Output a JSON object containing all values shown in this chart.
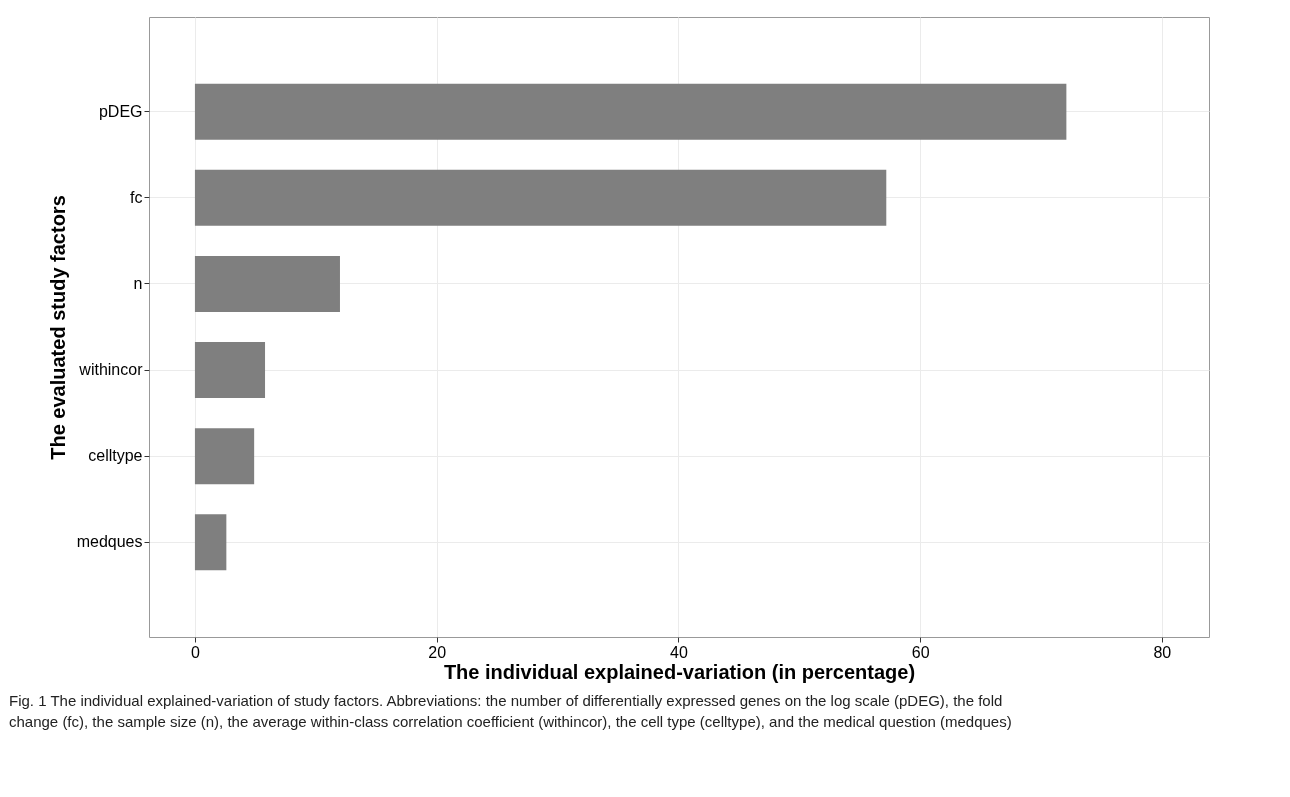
{
  "chart_data": {
    "type": "bar",
    "orientation": "horizontal",
    "xlabel": "The individual explained-variation (in percentage)",
    "ylabel": "The evaluated study factors",
    "categories": [
      "pDEG",
      "fc",
      "n",
      "withincor",
      "celltype",
      "medques"
    ],
    "values": [
      72.1,
      57.2,
      12.0,
      5.8,
      4.9,
      2.6
    ],
    "color": "#7f7f7f",
    "xlim": [
      -3.8,
      83.9
    ],
    "xticks": [
      0,
      20,
      40,
      60,
      80
    ],
    "grid": true,
    "annotations": [
      "Fig. 1 The individual explained-variation of study factors. Abbreviations: the number of differentially expressed genes on the log scale (pDEG), the fold change (fc), the sample size (n), the average within-class correlation coefficient (withincor), the cell type (celltype), and the medical question (medques)"
    ]
  }
}
